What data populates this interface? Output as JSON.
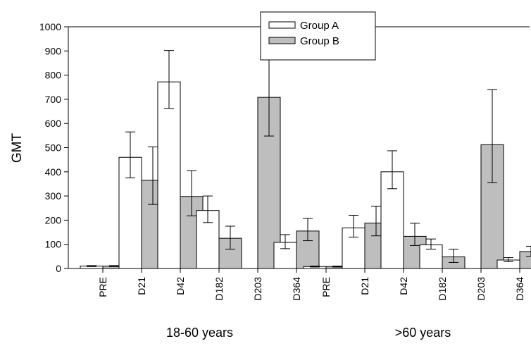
{
  "chart_data": {
    "type": "bar",
    "ylabel": "GMT",
    "ylim": [
      0,
      1000
    ],
    "yticks": [
      0,
      100,
      200,
      300,
      400,
      500,
      600,
      700,
      800,
      900,
      1000
    ],
    "groups": [
      {
        "label": "18-60 years",
        "categories": [
          "PRE",
          "D21",
          "D42",
          "D182",
          "D203",
          "D364"
        ],
        "series": [
          {
            "name": "Group A",
            "values": [
              10,
              460,
              772,
              240,
              null,
              108
            ],
            "err_low": [
              8,
              375,
              662,
              190,
              null,
              82
            ],
            "err_high": [
              12,
              565,
              902,
              300,
              null,
              140
            ]
          },
          {
            "name": "Group B",
            "values": [
              10,
              365,
              298,
              125,
              708,
              155
            ],
            "err_low": [
              8,
              265,
              218,
              80,
              548,
              115
            ],
            "err_high": [
              12,
              503,
              405,
              175,
              918,
              207
            ]
          }
        ]
      },
      {
        "label": ">60 years",
        "categories": [
          "PRE",
          "D21",
          "D42",
          "D182",
          "D203",
          "D364"
        ],
        "series": [
          {
            "name": "Group A",
            "values": [
              8,
              168,
              400,
              98,
              null,
              35
            ],
            "err_low": [
              6,
              130,
              330,
              80,
              null,
              28
            ],
            "err_high": [
              10,
              220,
              487,
              122,
              null,
              45
            ]
          },
          {
            "name": "Group B",
            "values": [
              8,
              188,
              133,
              48,
              512,
              70
            ],
            "err_low": [
              6,
              135,
              95,
              25,
              355,
              50
            ],
            "err_high": [
              10,
              258,
              187,
              80,
              740,
              92
            ]
          }
        ]
      }
    ],
    "legend": {
      "position": "top-center",
      "entries": [
        {
          "name": "Group A",
          "color": "#ffffff"
        },
        {
          "name": "Group B",
          "color": "#bebebe"
        }
      ]
    },
    "colors": {
      "group_a": "#ffffff",
      "group_b": "#bebebe",
      "stroke": "#000000"
    },
    "grid": false
  }
}
